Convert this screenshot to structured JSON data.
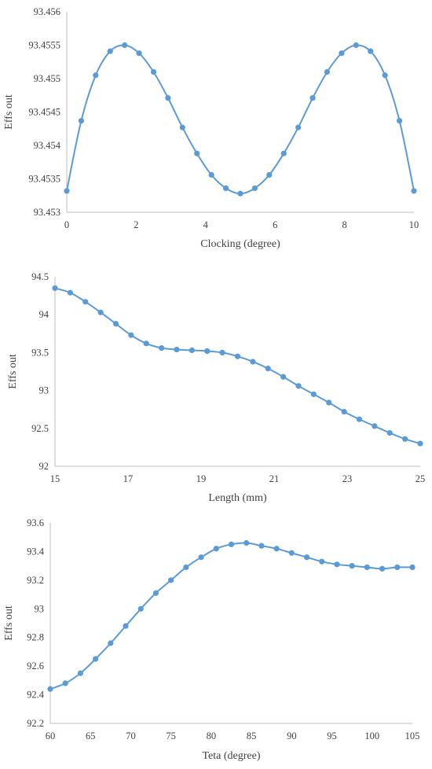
{
  "series_color": "#5b9bd5",
  "axis_color": "#bfbfbf",
  "text_color": "#404040",
  "chart_data": [
    {
      "type": "line",
      "title": "",
      "xlabel": "Clocking (degree)",
      "ylabel": "Effs out",
      "xlim": [
        0,
        10
      ],
      "ylim": [
        93.453,
        93.456
      ],
      "x_ticks": [
        0,
        2,
        4,
        6,
        8,
        10
      ],
      "x_tick_labels": [
        "0",
        "2",
        "4",
        "6",
        "8",
        "10"
      ],
      "y_ticks": [
        93.453,
        93.4535,
        93.454,
        93.4545,
        93.455,
        93.4555,
        93.456
      ],
      "y_tick_labels": [
        "93.453",
        "93.4535",
        "93.454",
        "93.4545",
        "93.455",
        "93.4555",
        "93.456"
      ],
      "grid": false,
      "series": [
        {
          "x": [
            0,
            0.417,
            0.833,
            1.25,
            1.667,
            2.083,
            2.5,
            2.917,
            3.333,
            3.75,
            4.167,
            4.583,
            5.0,
            5.417,
            5.833,
            6.25,
            6.667,
            7.083,
            7.5,
            7.917,
            8.333,
            8.75,
            9.167,
            9.583,
            10
          ],
          "y": [
            93.45332,
            93.45437,
            93.45505,
            93.45541,
            93.4555,
            93.45538,
            93.4551,
            93.45471,
            93.45427,
            93.45388,
            93.45356,
            93.45336,
            93.45328,
            93.45336,
            93.45356,
            93.45388,
            93.45427,
            93.45471,
            93.4551,
            93.45538,
            93.4555,
            93.45541,
            93.45505,
            93.45437,
            93.45332
          ]
        }
      ]
    },
    {
      "type": "line",
      "title": "",
      "xlabel": "Length (mm)",
      "ylabel": "Effs out",
      "xlim": [
        15,
        25
      ],
      "ylim": [
        92,
        94.5
      ],
      "x_ticks": [
        15,
        17,
        19,
        21,
        23,
        25
      ],
      "x_tick_labels": [
        "15",
        "17",
        "19",
        "21",
        "23",
        "25"
      ],
      "y_ticks": [
        92,
        92.5,
        93,
        93.5,
        94,
        94.5
      ],
      "y_tick_labels": [
        "92",
        "92.5",
        "93",
        "93.5",
        "94",
        "94.5"
      ],
      "grid": false,
      "series": [
        {
          "x": [
            15,
            15.417,
            15.833,
            16.25,
            16.667,
            17.083,
            17.5,
            17.917,
            18.333,
            18.75,
            19.167,
            19.583,
            20.0,
            20.417,
            20.833,
            21.25,
            21.667,
            22.083,
            22.5,
            22.917,
            23.333,
            23.75,
            24.167,
            24.583,
            25
          ],
          "y": [
            94.35,
            94.29,
            94.17,
            94.03,
            93.88,
            93.73,
            93.62,
            93.56,
            93.54,
            93.53,
            93.52,
            93.5,
            93.45,
            93.38,
            93.29,
            93.18,
            93.06,
            92.95,
            92.84,
            92.72,
            92.62,
            92.53,
            92.44,
            92.36,
            92.3
          ]
        }
      ]
    },
    {
      "type": "line",
      "title": "",
      "xlabel": "Teta (degree)",
      "ylabel": "Effs out",
      "xlim": [
        60,
        105
      ],
      "ylim": [
        92.2,
        93.6
      ],
      "x_ticks": [
        60,
        65,
        70,
        75,
        80,
        85,
        90,
        95,
        100,
        105
      ],
      "x_tick_labels": [
        "60",
        "65",
        "70",
        "75",
        "80",
        "85",
        "90",
        "95",
        "100",
        "105"
      ],
      "y_ticks": [
        92.2,
        92.4,
        92.6,
        92.8,
        93,
        93.2,
        93.4,
        93.6
      ],
      "y_tick_labels": [
        "92.2",
        "92.4",
        "92.6",
        "92.8",
        "93",
        "93.2",
        "93.4",
        "93.6"
      ],
      "grid": false,
      "series": [
        {
          "x": [
            60,
            61.875,
            63.75,
            65.625,
            67.5,
            69.375,
            71.25,
            73.125,
            75.0,
            76.875,
            78.75,
            80.625,
            82.5,
            84.375,
            86.25,
            88.125,
            90.0,
            91.875,
            93.75,
            95.625,
            97.5,
            99.375,
            101.25,
            103.125,
            105
          ],
          "y": [
            92.44,
            92.48,
            92.55,
            92.65,
            92.76,
            92.88,
            93.0,
            93.11,
            93.2,
            93.29,
            93.36,
            93.42,
            93.45,
            93.46,
            93.44,
            93.42,
            93.39,
            93.36,
            93.33,
            93.31,
            93.3,
            93.29,
            93.28,
            93.29,
            93.29
          ]
        }
      ]
    }
  ]
}
